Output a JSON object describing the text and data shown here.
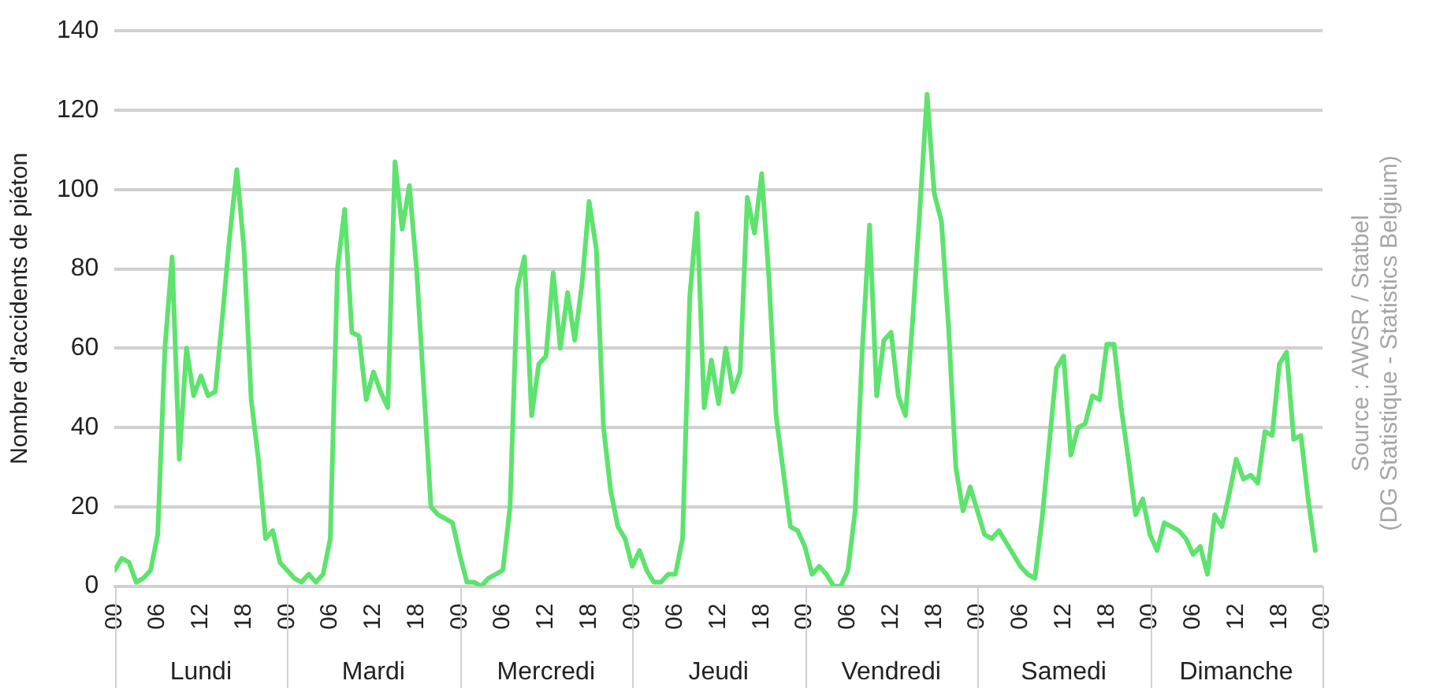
{
  "chart_data": {
    "type": "line",
    "ylabel": "Nombre d'accidents de piéton",
    "x": [
      0,
      1,
      2,
      3,
      4,
      5,
      6,
      7,
      8,
      9,
      10,
      11,
      12,
      13,
      14,
      15,
      16,
      17,
      18,
      19,
      20,
      21,
      22,
      23,
      24,
      25,
      26,
      27,
      28,
      29,
      30,
      31,
      32,
      33,
      34,
      35,
      36,
      37,
      38,
      39,
      40,
      41,
      42,
      43,
      44,
      45,
      46,
      47,
      48,
      49,
      50,
      51,
      52,
      53,
      54,
      55,
      56,
      57,
      58,
      59,
      60,
      61,
      62,
      63,
      64,
      65,
      66,
      67,
      68,
      69,
      70,
      71,
      72,
      73,
      74,
      75,
      76,
      77,
      78,
      79,
      80,
      81,
      82,
      83,
      84,
      85,
      86,
      87,
      88,
      89,
      90,
      91,
      92,
      93,
      94,
      95,
      96,
      97,
      98,
      99,
      100,
      101,
      102,
      103,
      104,
      105,
      106,
      107,
      108,
      109,
      110,
      111,
      112,
      113,
      114,
      115,
      116,
      117,
      118,
      119,
      120,
      121,
      122,
      123,
      124,
      125,
      126,
      127,
      128,
      129,
      130,
      131,
      132,
      133,
      134,
      135,
      136,
      137,
      138,
      139,
      140,
      141,
      142,
      143,
      144,
      145,
      146,
      147,
      148,
      149,
      150,
      151,
      152,
      153,
      154,
      155,
      156,
      157,
      158,
      159,
      160,
      161,
      162,
      163,
      164,
      165,
      166,
      167
    ],
    "series": [
      {
        "color": "#5ee36e",
        "values": [
          4,
          7,
          6,
          1,
          2,
          4,
          13,
          60,
          83,
          32,
          60,
          48,
          53,
          48,
          49,
          68,
          88,
          105,
          85,
          47,
          32,
          12,
          14,
          6,
          4,
          2,
          1,
          3,
          1,
          3,
          12,
          80,
          95,
          64,
          63,
          47,
          54,
          49,
          45,
          107,
          90,
          101,
          80,
          50,
          20,
          18,
          17,
          16,
          8,
          1,
          1,
          0,
          2,
          3,
          4,
          20,
          75,
          83,
          43,
          56,
          58,
          79,
          60,
          74,
          62,
          76,
          97,
          85,
          40,
          24,
          15,
          12,
          5,
          9,
          4,
          1,
          1,
          3,
          3,
          12,
          73,
          94,
          45,
          57,
          46,
          60,
          49,
          54,
          98,
          89,
          104,
          78,
          43,
          29,
          15,
          14,
          10,
          3,
          5,
          3,
          0,
          0,
          4,
          19,
          60,
          91,
          48,
          62,
          64,
          48,
          43,
          67,
          95,
          124,
          99,
          92,
          65,
          30,
          19,
          25,
          19,
          13,
          12,
          14,
          11,
          8,
          5,
          3,
          2,
          17,
          36,
          55,
          58,
          33,
          40,
          41,
          48,
          47,
          61,
          61,
          45,
          32,
          18,
          22,
          13,
          9,
          16,
          15,
          14,
          12,
          8,
          10,
          3,
          18,
          15,
          23,
          32,
          27,
          28,
          26,
          39,
          38,
          56,
          59,
          37,
          38,
          22,
          9
        ]
      }
    ],
    "xlim": [
      0,
      168
    ],
    "xticks": [
      {
        "value": 0,
        "label": "00"
      },
      {
        "value": 6,
        "label": "06"
      },
      {
        "value": 12,
        "label": "12"
      },
      {
        "value": 18,
        "label": "18"
      },
      {
        "value": 24,
        "label": "00"
      },
      {
        "value": 30,
        "label": "06"
      },
      {
        "value": 36,
        "label": "12"
      },
      {
        "value": 42,
        "label": "18"
      },
      {
        "value": 48,
        "label": "00"
      },
      {
        "value": 54,
        "label": "06"
      },
      {
        "value": 60,
        "label": "12"
      },
      {
        "value": 66,
        "label": "18"
      },
      {
        "value": 72,
        "label": "00"
      },
      {
        "value": 78,
        "label": "06"
      },
      {
        "value": 84,
        "label": "12"
      },
      {
        "value": 90,
        "label": "18"
      },
      {
        "value": 96,
        "label": "00"
      },
      {
        "value": 102,
        "label": "06"
      },
      {
        "value": 108,
        "label": "12"
      },
      {
        "value": 114,
        "label": "18"
      },
      {
        "value": 120,
        "label": "00"
      },
      {
        "value": 126,
        "label": "06"
      },
      {
        "value": 132,
        "label": "12"
      },
      {
        "value": 138,
        "label": "18"
      },
      {
        "value": 144,
        "label": "00"
      },
      {
        "value": 150,
        "label": "06"
      },
      {
        "value": 156,
        "label": "12"
      },
      {
        "value": 162,
        "label": "18"
      },
      {
        "value": 168,
        "label": "00"
      }
    ],
    "ylim": [
      0,
      140
    ],
    "yticks": [
      0,
      20,
      40,
      60,
      80,
      100,
      120,
      140
    ],
    "grid": "y",
    "legend": false,
    "marker": "none",
    "line_style": "solid",
    "annotations": [
      "Lundi",
      "Mardi",
      "Mercredi",
      "Jeudi",
      "Vendredi",
      "Samedi",
      "Dimanche",
      "Source : AWSR / Statbel\n(DG Statistique - Statistics Belgium)"
    ]
  }
}
